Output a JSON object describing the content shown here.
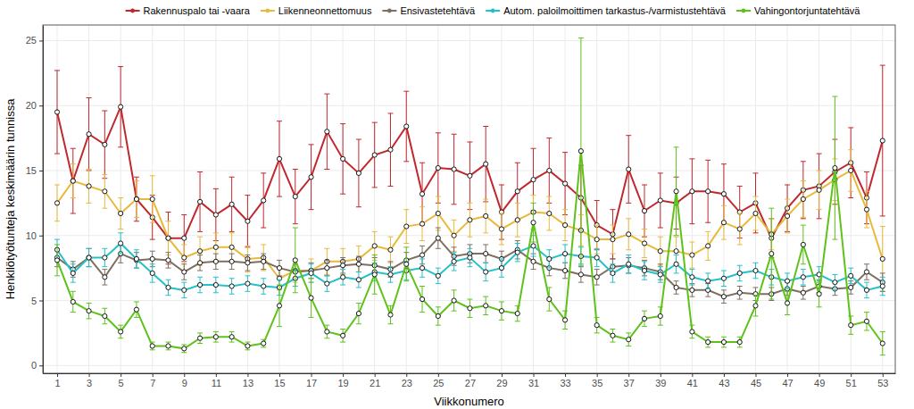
{
  "chart_data": {
    "type": "line",
    "x_label": "Viikkonumero",
    "y_label": "Henkilötyötunteja keskimäärin tunnissa",
    "x": [
      1,
      2,
      3,
      4,
      5,
      6,
      7,
      8,
      9,
      10,
      11,
      12,
      13,
      14,
      15,
      16,
      17,
      18,
      19,
      20,
      21,
      22,
      23,
      24,
      25,
      26,
      27,
      28,
      29,
      30,
      31,
      32,
      33,
      34,
      35,
      36,
      37,
      38,
      39,
      40,
      41,
      42,
      43,
      44,
      45,
      46,
      47,
      48,
      49,
      50,
      51,
      52,
      53
    ],
    "xlim": [
      0.1,
      53.8
    ],
    "xticks": [
      1,
      3,
      5,
      7,
      9,
      11,
      13,
      15,
      17,
      19,
      21,
      23,
      25,
      27,
      29,
      31,
      33,
      35,
      37,
      39,
      41,
      43,
      45,
      47,
      49,
      51,
      53
    ],
    "ylim": [
      -0.6,
      26.2
    ],
    "yticks": [
      0,
      5,
      10,
      15,
      20,
      25
    ],
    "grid": true,
    "legend": "top",
    "marker": "circle",
    "line_style": "solid",
    "series": [
      {
        "name": "Rakennuspalo tai -vaara",
        "color": "#c1272d",
        "values": [
          19.5,
          14.2,
          17.8,
          17.0,
          19.9,
          12.8,
          11.4,
          9.8,
          9.8,
          12.6,
          11.6,
          12.4,
          11.1,
          12.7,
          15.9,
          13.0,
          14.5,
          18.0,
          15.9,
          14.8,
          16.2,
          16.6,
          18.4,
          13.2,
          15.2,
          15.1,
          14.6,
          15.5,
          11.8,
          13.4,
          14.3,
          15.0,
          14.0,
          12.9,
          10.8,
          10.1,
          15.1,
          11.9,
          12.7,
          12.5,
          13.4,
          13.4,
          13.2,
          11.8,
          12.5,
          9.8,
          12.1,
          13.5,
          13.8,
          14.9,
          15.6,
          12.9,
          17.3
        ],
        "errors": [
          3.2,
          2.5,
          2.8,
          2.6,
          3.1,
          1.7,
          1.7,
          2.0,
          1.8,
          2.3,
          2.0,
          2.1,
          2.0,
          2.1,
          2.9,
          2.1,
          2.5,
          2.9,
          2.7,
          2.6,
          2.5,
          2.8,
          2.7,
          2.4,
          2.7,
          2.7,
          2.6,
          2.9,
          2.1,
          2.2,
          2.4,
          2.5,
          2.4,
          2.5,
          1.9,
          1.9,
          2.6,
          2.0,
          2.1,
          2.0,
          2.5,
          2.4,
          2.3,
          2.0,
          2.3,
          1.5,
          1.8,
          2.2,
          2.5,
          2.5,
          2.7,
          2.0,
          5.8
        ]
      },
      {
        "name": "Liikenneonnettomuus",
        "color": "#e8b93a",
        "values": [
          12.5,
          14.2,
          13.8,
          13.4,
          11.7,
          12.8,
          12.8,
          9.8,
          8.3,
          8.8,
          9.1,
          9.1,
          8.2,
          8.3,
          6.7,
          7.3,
          7.3,
          8.0,
          8.0,
          8.2,
          9.2,
          8.9,
          10.7,
          10.9,
          11.7,
          10.0,
          11.2,
          11.5,
          10.5,
          11.2,
          11.8,
          11.7,
          10.8,
          10.4,
          9.7,
          9.7,
          10.1,
          9.4,
          8.8,
          8.8,
          8.5,
          9.2,
          11.0,
          10.5,
          11.7,
          10.1,
          11.5,
          12.8,
          13.5,
          14.3,
          15.0,
          12.0,
          8.2
        ],
        "errors": [
          1.4,
          1.3,
          1.3,
          1.3,
          1.2,
          1.4,
          1.8,
          1.3,
          1.0,
          1.1,
          1.1,
          1.1,
          1.0,
          1.0,
          0.9,
          0.9,
          0.9,
          1.0,
          1.0,
          1.0,
          1.1,
          1.0,
          1.3,
          1.3,
          1.3,
          1.2,
          1.3,
          1.3,
          1.2,
          1.3,
          1.3,
          1.3,
          1.2,
          1.2,
          1.1,
          1.1,
          1.2,
          1.1,
          1.1,
          1.1,
          1.0,
          1.1,
          1.3,
          1.2,
          1.3,
          1.2,
          1.3,
          1.4,
          1.5,
          1.6,
          1.6,
          1.4,
          2.5
        ]
      },
      {
        "name": "Ensivastetehtävä",
        "color": "#7f6f5f",
        "values": [
          8.3,
          7.4,
          8.3,
          6.8,
          8.6,
          8.1,
          8.2,
          8.1,
          7.2,
          7.9,
          8.0,
          8.0,
          7.9,
          8.0,
          7.5,
          7.2,
          7.3,
          7.5,
          7.7,
          7.8,
          7.7,
          7.4,
          8.1,
          8.5,
          9.8,
          8.4,
          8.6,
          8.6,
          8.2,
          8.9,
          8.0,
          7.5,
          7.3,
          7.0,
          6.8,
          7.6,
          7.7,
          7.5,
          7.2,
          6.0,
          5.8,
          5.8,
          5.3,
          5.6,
          5.5,
          5.5,
          5.9,
          5.6,
          6.1,
          5.9,
          6.0,
          7.2,
          6.4
        ],
        "errors": [
          0.7,
          0.6,
          0.7,
          0.6,
          0.7,
          0.6,
          0.6,
          0.6,
          0.6,
          0.6,
          0.6,
          0.6,
          0.6,
          0.6,
          0.6,
          0.6,
          0.6,
          0.6,
          0.6,
          0.6,
          0.6,
          0.6,
          0.6,
          0.7,
          0.8,
          0.7,
          0.7,
          0.7,
          0.6,
          0.7,
          0.6,
          0.6,
          0.6,
          0.6,
          0.6,
          0.6,
          0.6,
          0.6,
          0.6,
          0.5,
          0.5,
          0.5,
          0.5,
          0.5,
          0.5,
          0.5,
          0.5,
          0.5,
          0.5,
          0.5,
          0.5,
          0.6,
          0.7
        ]
      },
      {
        "name": "Autom. paloilmoittimen tarkastus-/varmistustehtävä",
        "color": "#25c1c9",
        "values": [
          8.9,
          7.1,
          8.3,
          8.3,
          9.4,
          8.2,
          7.1,
          6.0,
          5.8,
          6.2,
          6.2,
          6.1,
          6.3,
          6.1,
          6.0,
          6.7,
          7.1,
          6.3,
          6.8,
          6.6,
          7.2,
          7.0,
          7.3,
          7.5,
          6.9,
          8.0,
          8.3,
          7.2,
          7.5,
          8.7,
          9.2,
          8.2,
          8.6,
          8.4,
          8.3,
          7.1,
          7.8,
          7.3,
          7.0,
          7.8,
          6.8,
          6.5,
          6.7,
          7.1,
          7.3,
          6.8,
          6.5,
          6.8,
          7.0,
          6.4,
          6.9,
          5.8,
          6.1
        ],
        "errors": [
          0.8,
          0.7,
          0.7,
          0.7,
          0.8,
          0.7,
          0.7,
          0.6,
          0.6,
          0.6,
          0.6,
          0.6,
          0.6,
          0.6,
          0.6,
          0.6,
          0.7,
          0.6,
          0.6,
          0.6,
          0.7,
          0.6,
          0.7,
          0.7,
          0.6,
          0.7,
          0.7,
          0.7,
          0.7,
          0.7,
          0.8,
          0.7,
          0.7,
          0.7,
          0.7,
          0.7,
          0.7,
          0.7,
          0.6,
          0.7,
          0.6,
          0.6,
          0.6,
          0.6,
          0.6,
          0.6,
          0.6,
          0.6,
          0.6,
          0.6,
          0.6,
          0.6,
          0.7
        ]
      },
      {
        "name": "Vahingontorjuntatehtävä",
        "color": "#5ec21a",
        "values": [
          8.1,
          4.9,
          4.2,
          3.8,
          2.6,
          4.3,
          1.5,
          1.5,
          1.3,
          2.1,
          2.2,
          2.2,
          1.5,
          1.7,
          4.6,
          8.1,
          5.2,
          2.6,
          2.3,
          4.0,
          7.0,
          3.9,
          7.8,
          5.1,
          3.8,
          5.0,
          4.4,
          4.6,
          4.2,
          4.0,
          11.0,
          5.1,
          3.5,
          16.5,
          3.1,
          2.3,
          2.0,
          3.6,
          3.8,
          13.4,
          2.6,
          1.8,
          1.8,
          1.8,
          4.6,
          8.6,
          4.8,
          9.3,
          5.5,
          15.2,
          3.1,
          3.4,
          1.7
        ],
        "errors": [
          1.2,
          0.8,
          0.6,
          0.6,
          0.5,
          0.6,
          0.3,
          0.3,
          0.3,
          0.4,
          0.4,
          0.4,
          0.3,
          0.3,
          1.6,
          2.5,
          1.5,
          0.5,
          0.5,
          0.8,
          1.5,
          0.7,
          1.3,
          1.0,
          0.7,
          0.8,
          0.7,
          0.7,
          0.7,
          0.6,
          1.5,
          0.9,
          0.7,
          8.7,
          0.6,
          0.5,
          0.5,
          0.6,
          0.7,
          3.4,
          0.5,
          0.4,
          0.4,
          0.4,
          0.8,
          3.5,
          0.9,
          1.5,
          1.0,
          5.5,
          0.7,
          0.7,
          0.9
        ]
      }
    ]
  }
}
